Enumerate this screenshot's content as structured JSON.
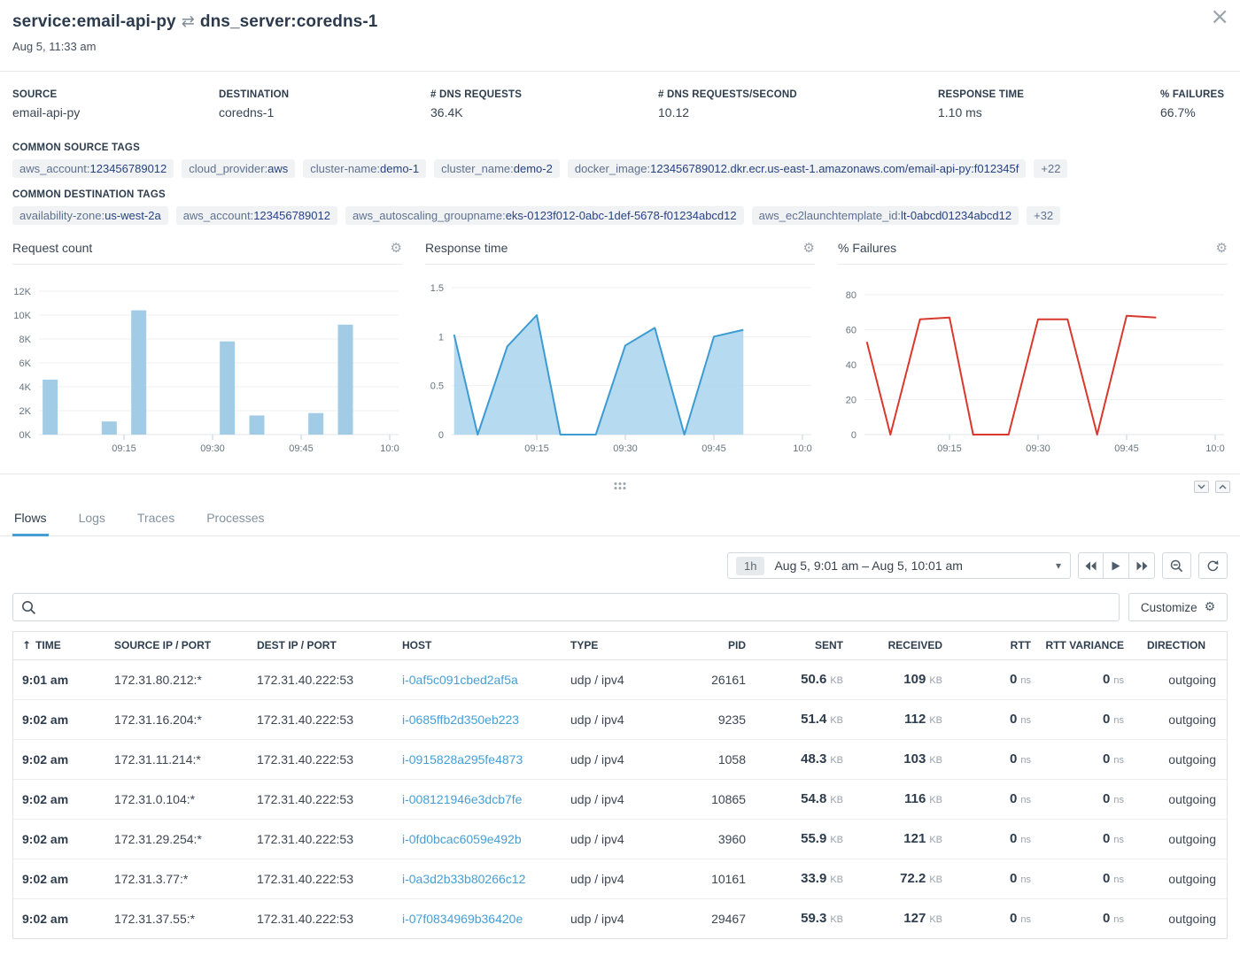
{
  "header": {
    "source_service": "service:email-api-py",
    "swap_icon": "⇄",
    "destination_service": "dns_server:coredns-1",
    "timestamp": "Aug 5, 11:33 am",
    "close_icon": "×"
  },
  "stats": [
    {
      "label": "SOURCE",
      "value": "email-api-py"
    },
    {
      "label": "DESTINATION",
      "value": "coredns-1"
    },
    {
      "label": "# DNS REQUESTS",
      "value": "36.4K"
    },
    {
      "label": "# DNS REQUESTS/SECOND",
      "value": "10.12"
    },
    {
      "label": "RESPONSE TIME",
      "value": "1.10 ms"
    },
    {
      "label": "% FAILURES",
      "value": "66.7%"
    }
  ],
  "common_source_tags": {
    "label": "COMMON SOURCE TAGS",
    "items": [
      {
        "key": "aws_account:",
        "value": "123456789012"
      },
      {
        "key": "cloud_provider:",
        "value": "aws"
      },
      {
        "key": "cluster-name:",
        "value": "demo-1"
      },
      {
        "key": "cluster_name:",
        "value": "demo-2"
      },
      {
        "key": "docker_image:",
        "value": "123456789012.dkr.ecr.us-east-1.amazonaws.com/email-api-py:f012345f"
      }
    ],
    "more": "+22"
  },
  "common_destination_tags": {
    "label": "COMMON DESTINATION TAGS",
    "items": [
      {
        "key": "availability-zone:",
        "value": "us-west-2a"
      },
      {
        "key": "aws_account:",
        "value": "123456789012"
      },
      {
        "key": "aws_autoscaling_groupname:",
        "value": "eks-0123f012-0abc-1def-5678-f01234abcd12"
      },
      {
        "key": "aws_ec2launchtemplate_id:",
        "value": "lt-0abcd01234abcd12"
      }
    ],
    "more": "+32"
  },
  "chart_data": [
    {
      "type": "bar",
      "title": "Request count",
      "xlabel": "time",
      "x_range_minutes": [
        0,
        60
      ],
      "x_ticks": [
        {
          "m": 15,
          "label": "09:15"
        },
        {
          "m": 30,
          "label": "09:30"
        },
        {
          "m": 45,
          "label": "09:45"
        },
        {
          "m": 60,
          "label": "10:0"
        }
      ],
      "ylim": [
        0,
        12000
      ],
      "y_ticks": [
        {
          "v": 0,
          "label": "0K"
        },
        {
          "v": 2000,
          "label": "2K"
        },
        {
          "v": 4000,
          "label": "4K"
        },
        {
          "v": 6000,
          "label": "6K"
        },
        {
          "v": 8000,
          "label": "8K"
        },
        {
          "v": 10000,
          "label": "10K"
        },
        {
          "v": 12000,
          "label": "12K"
        }
      ],
      "bars": [
        {
          "m": 2.5,
          "value": 4600
        },
        {
          "m": 12.5,
          "value": 1100
        },
        {
          "m": 17.5,
          "value": 10400
        },
        {
          "m": 32.5,
          "value": 7800
        },
        {
          "m": 37.5,
          "value": 1600
        },
        {
          "m": 47.5,
          "value": 1800
        },
        {
          "m": 52.5,
          "value": 9200
        }
      ],
      "color": "#a2cce6",
      "grid": true,
      "legend": false
    },
    {
      "type": "area",
      "title": "Response time",
      "xlabel": "time",
      "x_range_minutes": [
        0,
        60
      ],
      "x_ticks": [
        {
          "m": 15,
          "label": "09:15"
        },
        {
          "m": 30,
          "label": "09:30"
        },
        {
          "m": 45,
          "label": "09:45"
        },
        {
          "m": 60,
          "label": "10:0"
        }
      ],
      "ylim": [
        0,
        1.5
      ],
      "y_ticks": [
        {
          "v": 0,
          "label": "0"
        },
        {
          "v": 0.5,
          "label": "0.5"
        },
        {
          "v": 1,
          "label": "1"
        },
        {
          "v": 1.5,
          "label": "1.5"
        }
      ],
      "points": [
        {
          "m": 1,
          "value": 1.02
        },
        {
          "m": 5,
          "value": 0
        },
        {
          "m": 10,
          "value": 0.9
        },
        {
          "m": 15,
          "value": 1.22
        },
        {
          "m": 19,
          "value": 0
        },
        {
          "m": 25,
          "value": 0
        },
        {
          "m": 30,
          "value": 0.91
        },
        {
          "m": 35,
          "value": 1.09
        },
        {
          "m": 40,
          "value": 0
        },
        {
          "m": 45,
          "value": 1.0
        },
        {
          "m": 50,
          "value": 1.07
        }
      ],
      "line_color": "#3d9bd2",
      "fill_color": "#a9d3ec",
      "grid": true,
      "legend": false
    },
    {
      "type": "line",
      "title": "% Failures",
      "xlabel": "time",
      "x_range_minutes": [
        0,
        60
      ],
      "x_ticks": [
        {
          "m": 15,
          "label": "09:15"
        },
        {
          "m": 30,
          "label": "09:30"
        },
        {
          "m": 45,
          "label": "09:45"
        },
        {
          "m": 60,
          "label": "10:0"
        }
      ],
      "ylim": [
        0,
        80
      ],
      "y_ticks": [
        {
          "v": 0,
          "label": "0"
        },
        {
          "v": 20,
          "label": "20"
        },
        {
          "v": 40,
          "label": "40"
        },
        {
          "v": 60,
          "label": "60"
        },
        {
          "v": 80,
          "label": "80"
        }
      ],
      "points": [
        {
          "m": 1,
          "value": 53
        },
        {
          "m": 5,
          "value": 0
        },
        {
          "m": 10,
          "value": 66
        },
        {
          "m": 15,
          "value": 67
        },
        {
          "m": 19,
          "value": 0
        },
        {
          "m": 25,
          "value": 0
        },
        {
          "m": 30,
          "value": 66
        },
        {
          "m": 35,
          "value": 66
        },
        {
          "m": 40,
          "value": 0
        },
        {
          "m": 45,
          "value": 68
        },
        {
          "m": 50,
          "value": 67
        }
      ],
      "line_color": "#d9382d",
      "grid": true,
      "legend": false
    }
  ],
  "panel": {
    "tabs": [
      "Flows",
      "Logs",
      "Traces",
      "Processes"
    ],
    "active_tab": "Flows"
  },
  "time_controls": {
    "interval": "1h",
    "range": "Aug 5, 9:01 am – Aug 5, 10:01 am"
  },
  "toolbar": {
    "search_placeholder": "",
    "customize_label": "Customize"
  },
  "table": {
    "columns": [
      "TIME",
      "SOURCE IP / PORT",
      "DEST IP / PORT",
      "HOST",
      "TYPE",
      "PID",
      "SENT",
      "RECEIVED",
      "RTT",
      "RTT VARIANCE",
      "DIRECTION"
    ],
    "rows": [
      {
        "time": "9:01 am",
        "source": "172.31.80.212:*",
        "dest": "172.31.40.222:53",
        "host": "i-0af5c091cbed2af5a",
        "type": "udp / ipv4",
        "pid": "26161",
        "sent": {
          "v": "50.6",
          "u": "KB"
        },
        "received": {
          "v": "109",
          "u": "KB"
        },
        "rtt": {
          "v": "0",
          "u": "ns"
        },
        "rtt_variance": {
          "v": "0",
          "u": "ns"
        },
        "direction": "outgoing"
      },
      {
        "time": "9:02 am",
        "source": "172.31.16.204:*",
        "dest": "172.31.40.222:53",
        "host": "i-0685ffb2d350eb223",
        "type": "udp / ipv4",
        "pid": "9235",
        "sent": {
          "v": "51.4",
          "u": "KB"
        },
        "received": {
          "v": "112",
          "u": "KB"
        },
        "rtt": {
          "v": "0",
          "u": "ns"
        },
        "rtt_variance": {
          "v": "0",
          "u": "ns"
        },
        "direction": "outgoing"
      },
      {
        "time": "9:02 am",
        "source": "172.31.11.214:*",
        "dest": "172.31.40.222:53",
        "host": "i-0915828a295fe4873",
        "type": "udp / ipv4",
        "pid": "1058",
        "sent": {
          "v": "48.3",
          "u": "KB"
        },
        "received": {
          "v": "103",
          "u": "KB"
        },
        "rtt": {
          "v": "0",
          "u": "ns"
        },
        "rtt_variance": {
          "v": "0",
          "u": "ns"
        },
        "direction": "outgoing"
      },
      {
        "time": "9:02 am",
        "source": "172.31.0.104:*",
        "dest": "172.31.40.222:53",
        "host": "i-008121946e3dcb7fe",
        "type": "udp / ipv4",
        "pid": "10865",
        "sent": {
          "v": "54.8",
          "u": "KB"
        },
        "received": {
          "v": "116",
          "u": "KB"
        },
        "rtt": {
          "v": "0",
          "u": "ns"
        },
        "rtt_variance": {
          "v": "0",
          "u": "ns"
        },
        "direction": "outgoing"
      },
      {
        "time": "9:02 am",
        "source": "172.31.29.254:*",
        "dest": "172.31.40.222:53",
        "host": "i-0fd0bcac6059e492b",
        "type": "udp / ipv4",
        "pid": "3960",
        "sent": {
          "v": "55.9",
          "u": "KB"
        },
        "received": {
          "v": "121",
          "u": "KB"
        },
        "rtt": {
          "v": "0",
          "u": "ns"
        },
        "rtt_variance": {
          "v": "0",
          "u": "ns"
        },
        "direction": "outgoing"
      },
      {
        "time": "9:02 am",
        "source": "172.31.3.77:*",
        "dest": "172.31.40.222:53",
        "host": "i-0a3d2b33b80266c12",
        "type": "udp / ipv4",
        "pid": "10161",
        "sent": {
          "v": "33.9",
          "u": "KB"
        },
        "received": {
          "v": "72.2",
          "u": "KB"
        },
        "rtt": {
          "v": "0",
          "u": "ns"
        },
        "rtt_variance": {
          "v": "0",
          "u": "ns"
        },
        "direction": "outgoing"
      },
      {
        "time": "9:02 am",
        "source": "172.31.37.55:*",
        "dest": "172.31.40.222:53",
        "host": "i-07f0834969b36420e",
        "type": "udp / ipv4",
        "pid": "29467",
        "sent": {
          "v": "59.3",
          "u": "KB"
        },
        "received": {
          "v": "127",
          "u": "KB"
        },
        "rtt": {
          "v": "0",
          "u": "ns"
        },
        "rtt_variance": {
          "v": "0",
          "u": "ns"
        },
        "direction": "outgoing"
      }
    ]
  }
}
